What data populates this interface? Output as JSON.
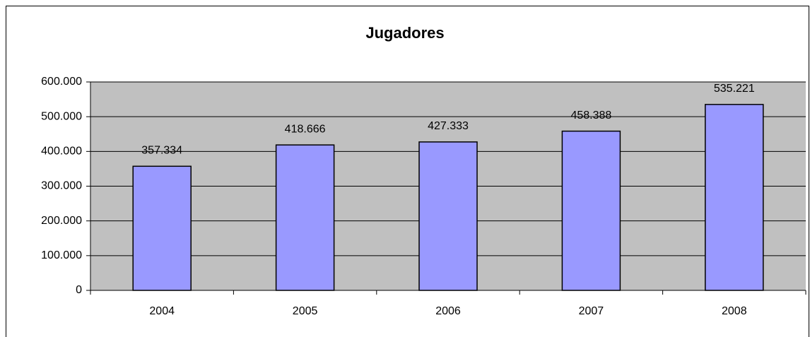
{
  "chart_data": {
    "type": "bar",
    "title": "Jugadores",
    "categories": [
      "2004",
      "2005",
      "2006",
      "2007",
      "2008"
    ],
    "values": [
      357334,
      418666,
      427333,
      458388,
      535221
    ],
    "value_labels": [
      "357.334",
      "418.666",
      "427.333",
      "458.388",
      "535.221"
    ],
    "color": "#9999ff",
    "ylim": [
      0,
      600000
    ],
    "yticks": [
      0,
      {
        "value": 100000,
        "label": "100.000"
      },
      {
        "value": 200000,
        "label": "200.000"
      },
      {
        "value": 300000,
        "label": "300.000"
      },
      {
        "value": 400000,
        "label": "400.000"
      },
      {
        "value": 500000,
        "label": "500.000"
      },
      {
        "value": 600000,
        "label": "600.000"
      }
    ],
    "grid": true
  }
}
